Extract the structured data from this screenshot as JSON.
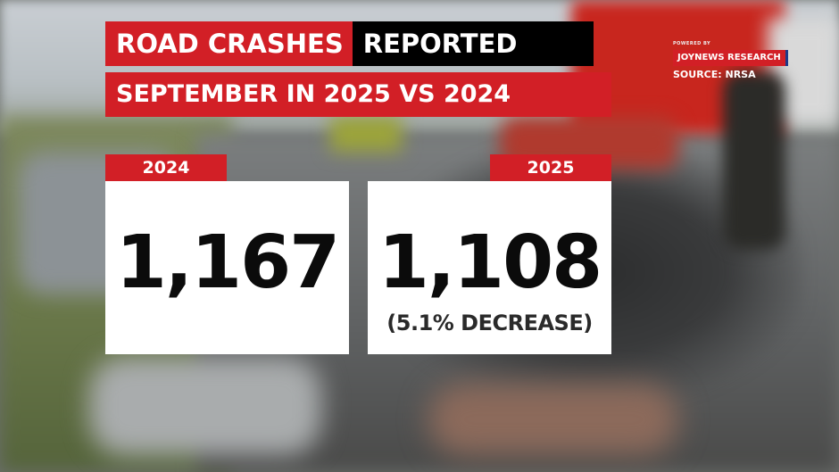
{
  "title": {
    "line1_red": "ROAD CRASHES",
    "line1_black": "REPORTED",
    "line2": "SEPTEMBER IN 2025 VS 2024"
  },
  "brand": {
    "powered": "POWERED BY",
    "badge": "JOYNEWS RESEARCH",
    "source": "SOURCE: NRSA"
  },
  "stats": [
    {
      "year": "2024",
      "value": "1,167"
    },
    {
      "year": "2025",
      "value": "1,108",
      "note": "(5.1% DECREASE)"
    }
  ],
  "colors": {
    "accent_red": "#d21f26",
    "black": "#000000",
    "card": "#ffffff"
  }
}
